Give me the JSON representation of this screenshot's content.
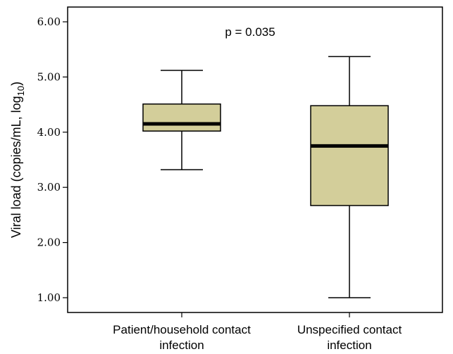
{
  "chart_data": {
    "type": "box",
    "ylabel": "Viral load (copies/mL, log",
    "ylabel_sub": "10",
    "ylabel_close": ")",
    "ylim": [
      0.8,
      6.2
    ],
    "yticks": [
      {
        "v": 1,
        "label": "1.00"
      },
      {
        "v": 2,
        "label": "2.00"
      },
      {
        "v": 3,
        "label": "3.00"
      },
      {
        "v": 4,
        "label": "4.00"
      },
      {
        "v": 5,
        "label": "5.00"
      },
      {
        "v": 6,
        "label": "6.00"
      }
    ],
    "categories": [
      {
        "lines": [
          "Patient/household contact",
          "infection"
        ]
      },
      {
        "lines": [
          "Unspecified  contact",
          "infection"
        ]
      }
    ],
    "boxes": [
      {
        "min": 3.32,
        "q1": 4.02,
        "median": 4.15,
        "q3": 4.51,
        "max": 5.12
      },
      {
        "min": 1.0,
        "q1": 2.67,
        "median": 3.75,
        "q3": 4.48,
        "max": 5.37
      }
    ],
    "annotation": "p = 0.035",
    "colors": {
      "box_fill": "#d3ce9a",
      "stroke": "#000000"
    },
    "grid": false
  }
}
